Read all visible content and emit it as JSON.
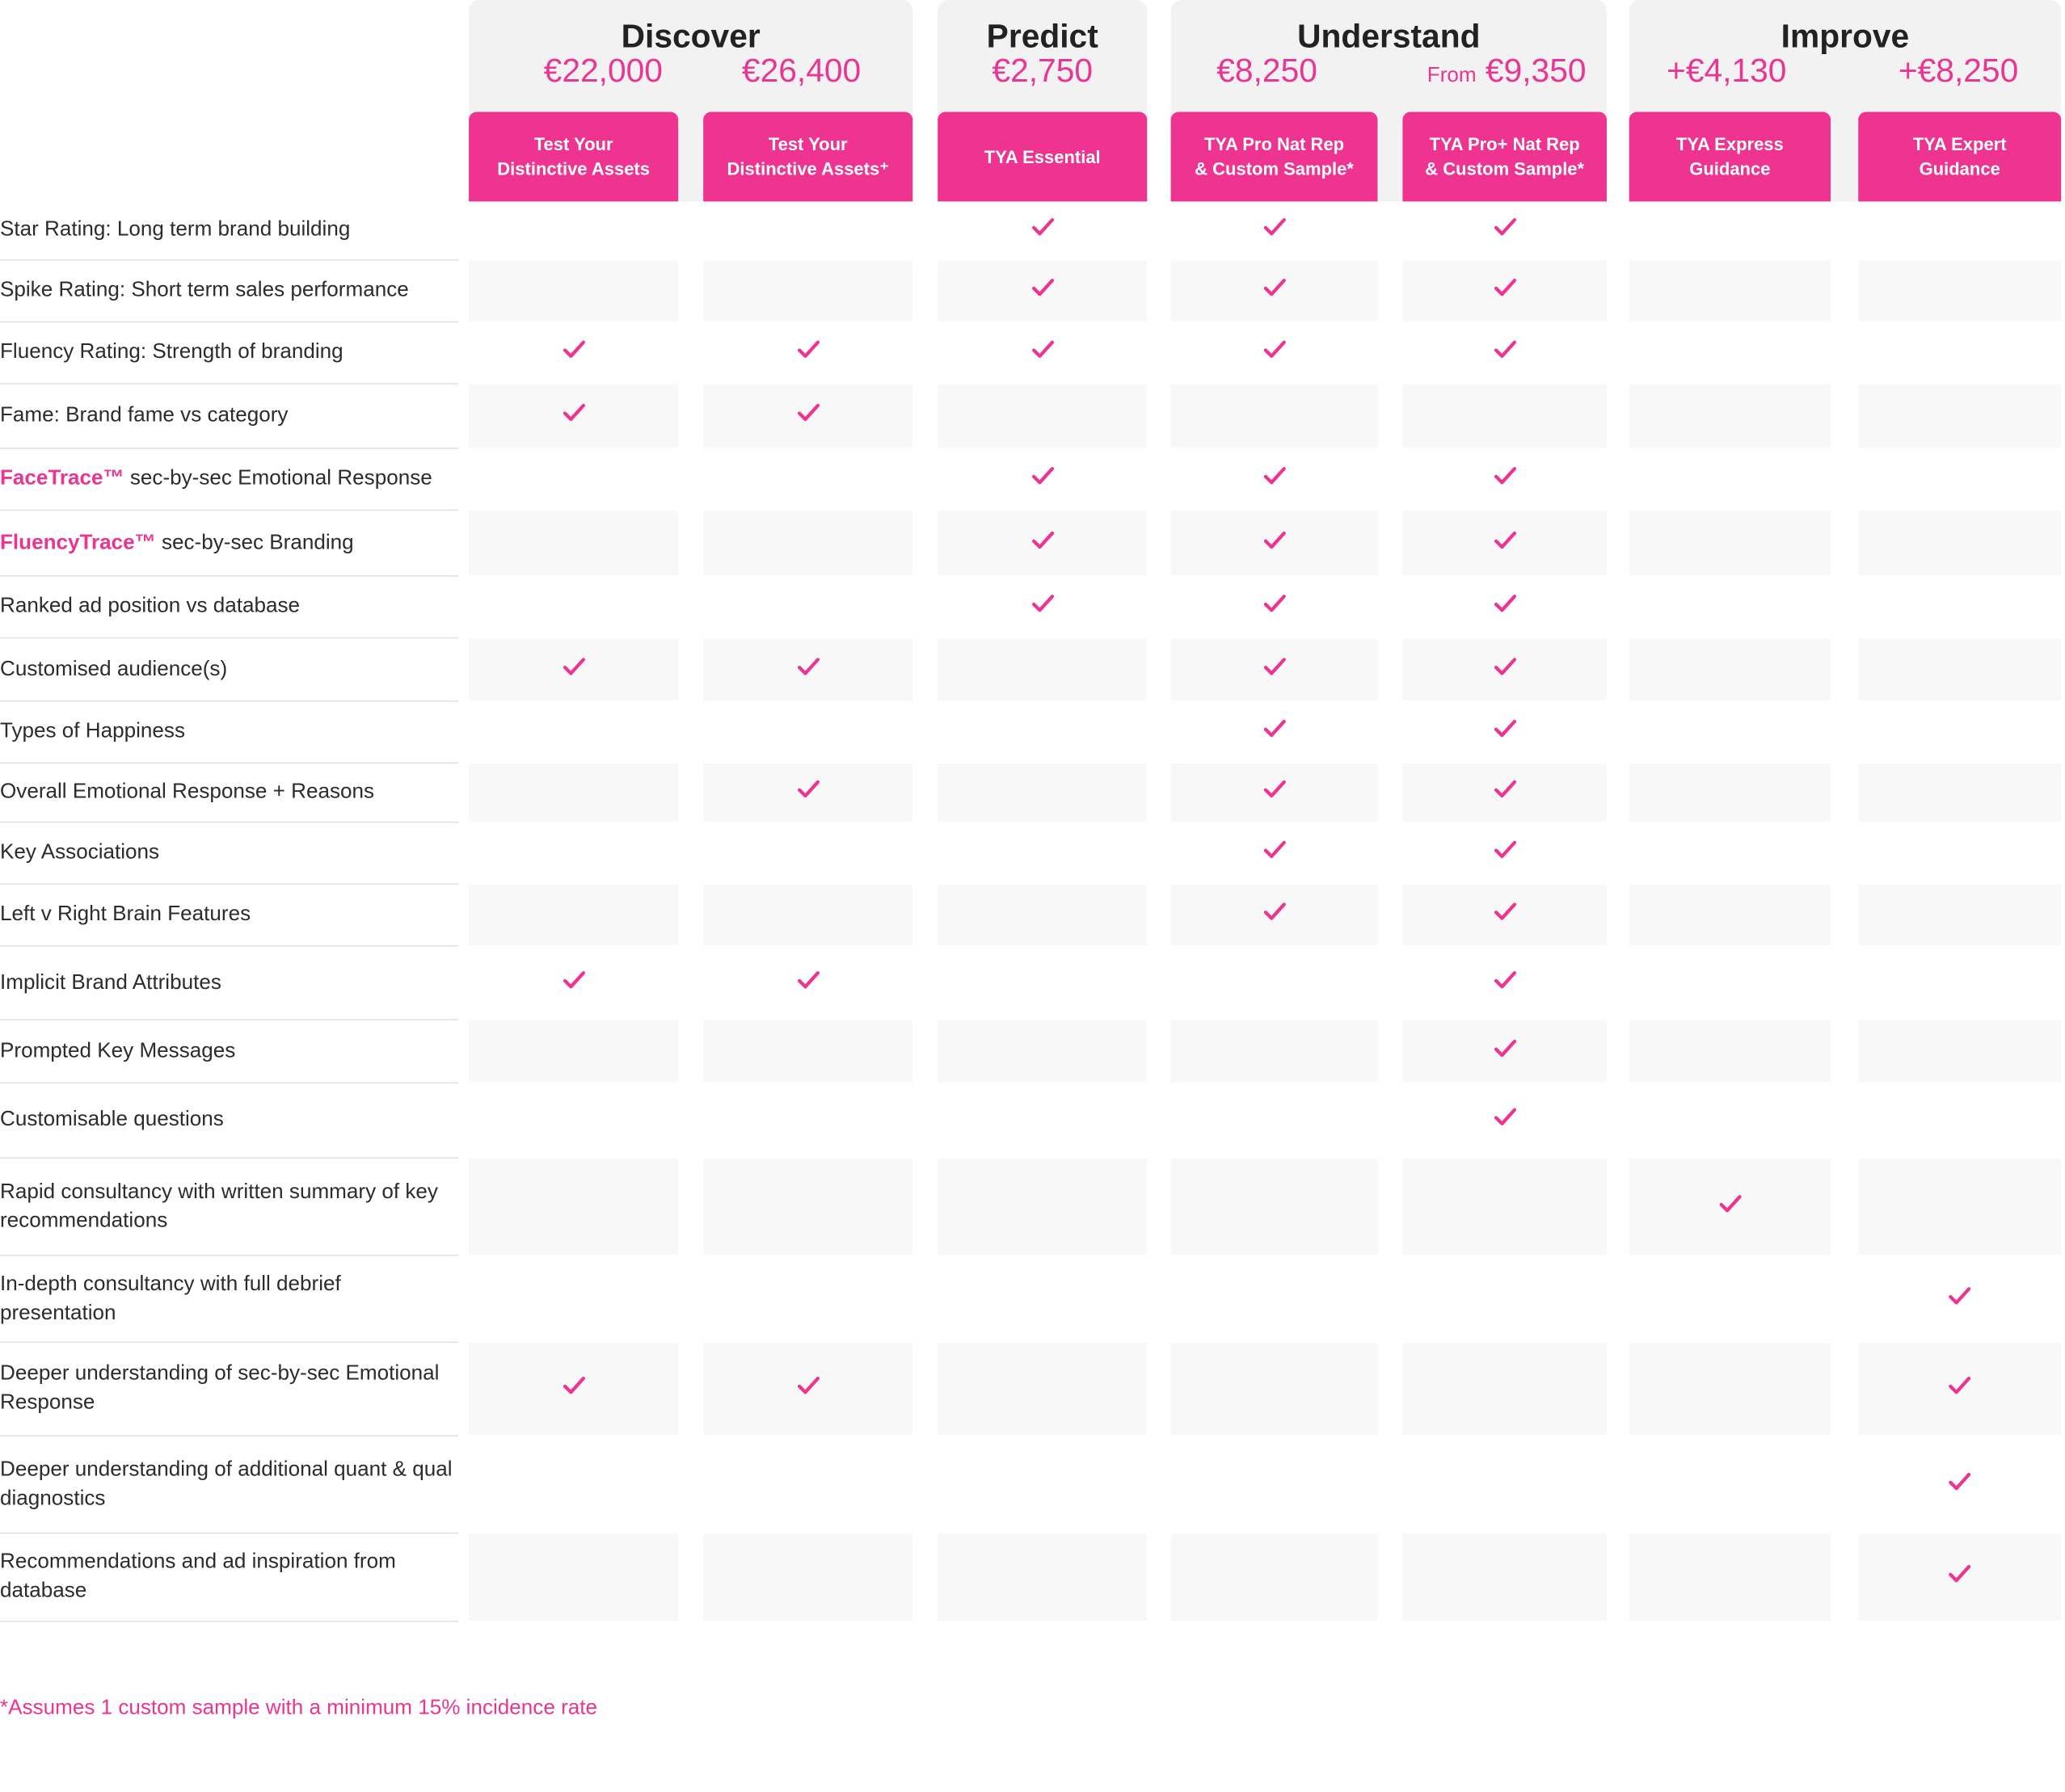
{
  "colors": {
    "accent": "#ee3391",
    "header_bg": "#f2f2f2",
    "shaded_row": "#f8f8f8"
  },
  "groups": [
    {
      "title": "Discover",
      "prices": [
        "€22,000",
        "€26,400"
      ]
    },
    {
      "title": "Predict",
      "prices": [
        "€2,750"
      ]
    },
    {
      "title": "Understand",
      "prices": [
        "€8,250",
        "€9,350"
      ],
      "from_label": "From"
    },
    {
      "title": "Improve",
      "prices": [
        "+€4,130",
        "+€8,250"
      ]
    }
  ],
  "products": [
    {
      "line1": "Test Your",
      "line2": "Distinctive Assets"
    },
    {
      "line1": "Test Your",
      "line2": "Distinctive Assets⁺"
    },
    {
      "line1": "TYA Essential",
      "line2": ""
    },
    {
      "line1": "TYA Pro Nat Rep",
      "line2": "& Custom Sample*"
    },
    {
      "line1": "TYA Pro+ Nat Rep",
      "line2": "& Custom Sample*"
    },
    {
      "line1": "TYA Express",
      "line2": "Guidance"
    },
    {
      "line1": "TYA Expert",
      "line2": "Guidance"
    }
  ],
  "check_icon": "checkmark-icon",
  "rows": [
    {
      "brand": "",
      "label": "Star Rating: Long term brand building",
      "checks": [
        0,
        0,
        1,
        1,
        1,
        0,
        0
      ]
    },
    {
      "brand": "",
      "label": "Spike Rating: Short term sales performance",
      "checks": [
        0,
        0,
        1,
        1,
        1,
        0,
        0
      ]
    },
    {
      "brand": "",
      "label": "Fluency Rating: Strength of branding",
      "checks": [
        1,
        1,
        1,
        1,
        1,
        0,
        0
      ]
    },
    {
      "brand": "",
      "label": "Fame: Brand fame vs category",
      "checks": [
        1,
        1,
        0,
        0,
        0,
        0,
        0
      ]
    },
    {
      "brand": "FaceTrace™",
      "label": " sec-by-sec Emotional Response",
      "checks": [
        0,
        0,
        1,
        1,
        1,
        0,
        0
      ]
    },
    {
      "brand": "FluencyTrace™",
      "label": " sec-by-sec Branding",
      "checks": [
        0,
        0,
        1,
        1,
        1,
        0,
        0
      ]
    },
    {
      "brand": "",
      "label": "Ranked ad position vs database",
      "checks": [
        0,
        0,
        1,
        1,
        1,
        0,
        0
      ]
    },
    {
      "brand": "",
      "label": "Customised audience(s)",
      "checks": [
        1,
        1,
        0,
        1,
        1,
        0,
        0
      ]
    },
    {
      "brand": "",
      "label": "Types of Happiness",
      "checks": [
        0,
        0,
        0,
        1,
        1,
        0,
        0
      ]
    },
    {
      "brand": "",
      "label": "Overall Emotional Response + Reasons",
      "checks": [
        0,
        1,
        0,
        1,
        1,
        0,
        0
      ]
    },
    {
      "brand": "",
      "label": "Key Associations",
      "checks": [
        0,
        0,
        0,
        1,
        1,
        0,
        0
      ]
    },
    {
      "brand": "",
      "label": "Left v Right Brain Features",
      "checks": [
        0,
        0,
        0,
        1,
        1,
        0,
        0
      ]
    },
    {
      "brand": "",
      "label": "Implicit Brand Attributes",
      "checks": [
        1,
        1,
        0,
        0,
        1,
        0,
        0
      ]
    },
    {
      "brand": "",
      "label": "Prompted Key Messages",
      "checks": [
        0,
        0,
        0,
        0,
        1,
        0,
        0
      ]
    },
    {
      "brand": "",
      "label": "Customisable questions",
      "checks": [
        0,
        0,
        0,
        0,
        1,
        0,
        0
      ]
    },
    {
      "brand": "",
      "label": "Rapid consultancy with written summary of key recommendations",
      "checks": [
        0,
        0,
        0,
        0,
        0,
        1,
        0
      ]
    },
    {
      "brand": "",
      "label": "In-depth consultancy with full debrief presentation",
      "checks": [
        0,
        0,
        0,
        0,
        0,
        0,
        1
      ]
    },
    {
      "brand": "",
      "label": "Deeper understanding of sec-by-sec Emotional Response",
      "checks": [
        1,
        1,
        0,
        0,
        0,
        0,
        1
      ]
    },
    {
      "brand": "",
      "label": "Deeper understanding of additional quant & qual diagnostics",
      "checks": [
        0,
        0,
        0,
        0,
        0,
        0,
        1
      ]
    },
    {
      "brand": "",
      "label": "Recommendations and ad inspiration from database",
      "checks": [
        0,
        0,
        0,
        0,
        0,
        0,
        1
      ]
    }
  ],
  "footnote": "*Assumes 1 custom sample with a minimum 15% incidence rate"
}
